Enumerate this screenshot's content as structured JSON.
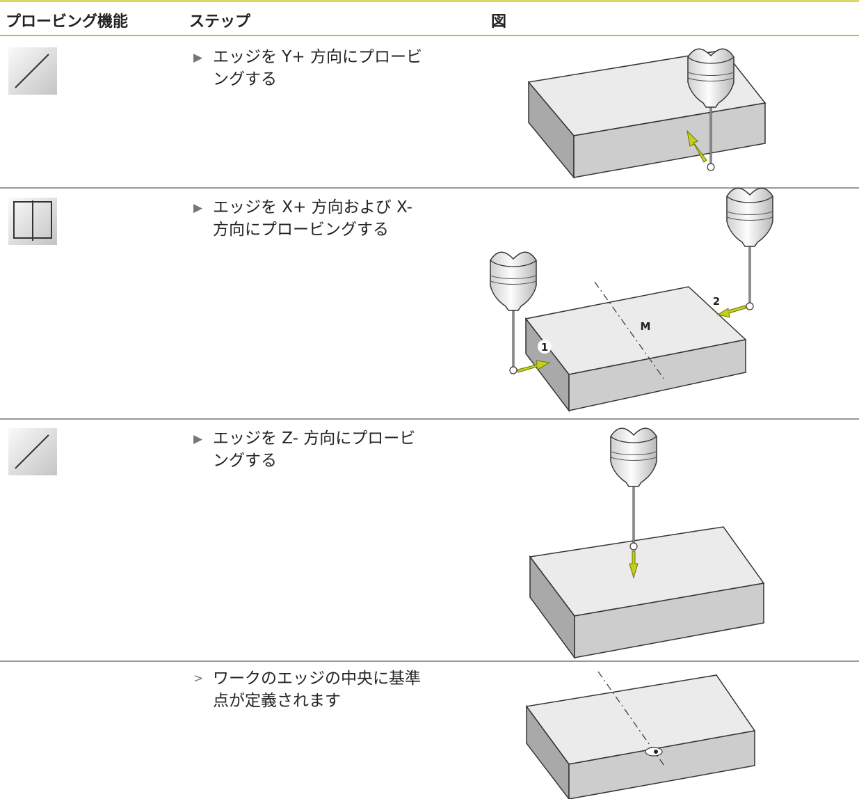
{
  "header": {
    "columns": [
      "プロービング機能",
      "ステップ",
      "図"
    ]
  },
  "rows": [
    {
      "marker": "▶",
      "step": [
        "エッジを Y+ 方向にプロービ",
        "ングする"
      ]
    },
    {
      "marker": "▶",
      "step": [
        "エッジを X+ 方向および X-",
        "方向にプロービングする"
      ],
      "labels": [
        "1",
        "2",
        "M"
      ]
    },
    {
      "marker": "▶",
      "step": [
        "エッジを Z- 方向にプロービ",
        "ングする"
      ]
    },
    {
      "marker": ">",
      "step": [
        "ワークのエッジの中央に基準",
        "点が定義されます"
      ]
    }
  ]
}
